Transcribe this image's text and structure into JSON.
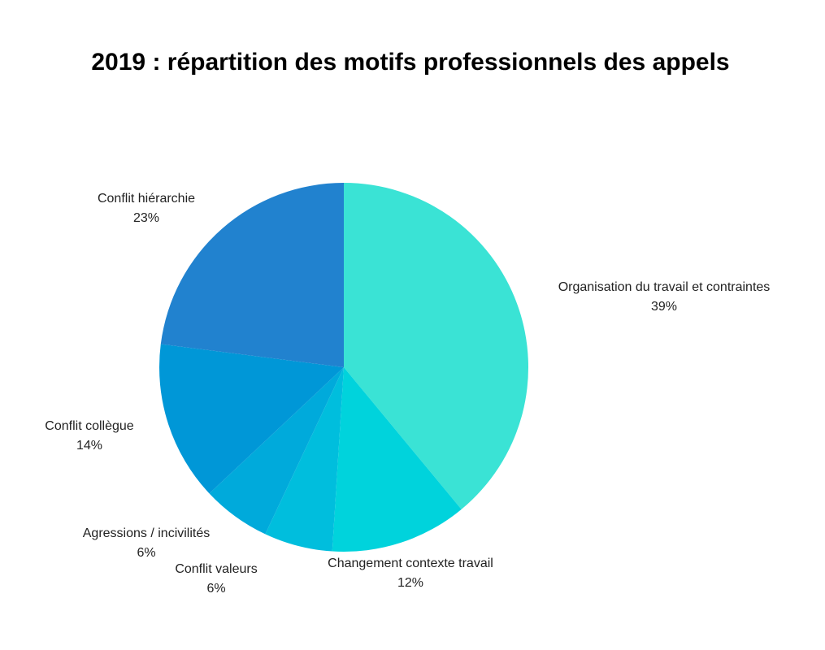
{
  "chart_data": {
    "type": "pie",
    "title": "2019 : répartition des motifs professionnels des appels",
    "slices": [
      {
        "label": "Organisation du travail et contraintes",
        "value": 39,
        "value_label": "39%",
        "color": "#3ae3d5"
      },
      {
        "label": "Changement contexte travail",
        "value": 12,
        "value_label": "12%",
        "color": "#00d3dc"
      },
      {
        "label": "Conflit valeurs",
        "value": 6,
        "value_label": "6%",
        "color": "#00bedd"
      },
      {
        "label": "Agressions / incivilités",
        "value": 6,
        "value_label": "6%",
        "color": "#00aadb"
      },
      {
        "label": "Conflit collègue",
        "value": 14,
        "value_label": "14%",
        "color": "#0097d7"
      },
      {
        "label": "Conflit hiérarchie",
        "value": 23,
        "value_label": "23%",
        "color": "#2182cf"
      }
    ]
  }
}
